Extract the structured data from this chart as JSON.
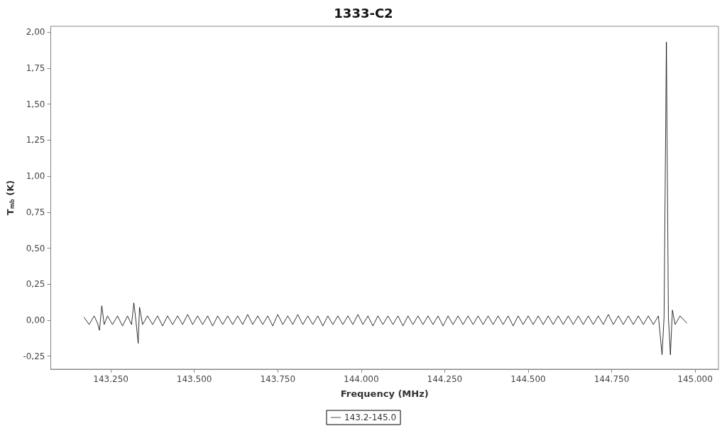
{
  "chart_data": {
    "type": "line",
    "title": "1333-C2",
    "xlabel": "Frequency (MHz)",
    "ylabel": "T$_{mb}$ (K)",
    "xlim": [
      143070,
      145070
    ],
    "xticks": [
      {
        "value": 143250,
        "label": "143.250"
      },
      {
        "value": 143500,
        "label": "143.500"
      },
      {
        "value": 143750,
        "label": "143.750"
      },
      {
        "value": 144000,
        "label": "144.000"
      },
      {
        "value": 144250,
        "label": "144.250"
      },
      {
        "value": 144500,
        "label": "144.500"
      },
      {
        "value": 144750,
        "label": "144.750"
      },
      {
        "value": 145000,
        "label": "145.000"
      }
    ],
    "ylim": [
      -0.34,
      2.04
    ],
    "yticks": [
      {
        "value": -0.25,
        "label": "-0,25"
      },
      {
        "value": 0,
        "label": "0,00"
      },
      {
        "value": 0.25,
        "label": "0,25"
      },
      {
        "value": 0.5,
        "label": "0,50"
      },
      {
        "value": 0.75,
        "label": "0,75"
      },
      {
        "value": 1,
        "label": "1,00"
      },
      {
        "value": 1.25,
        "label": "1,25"
      },
      {
        "value": 1.5,
        "label": "1,50"
      },
      {
        "value": 1.75,
        "label": "1,75"
      },
      {
        "value": 2,
        "label": "2,00"
      }
    ],
    "grid": false,
    "legend": "bottom",
    "marker": "none",
    "line_style": "solid",
    "series": [
      {
        "name": "143.2-145.0",
        "color": "#000000",
        "x": [
          143170,
          143185,
          143200,
          143210,
          143216,
          143223,
          143230,
          143240,
          143255,
          143270,
          143285,
          143300,
          143312,
          143319,
          143326,
          143332,
          143336,
          143345,
          143360,
          143375,
          143390,
          143405,
          143420,
          143435,
          143450,
          143465,
          143480,
          143495,
          143510,
          143525,
          143540,
          143555,
          143570,
          143585,
          143600,
          143615,
          143630,
          143645,
          143660,
          143675,
          143690,
          143705,
          143720,
          143735,
          143750,
          143765,
          143780,
          143795,
          143810,
          143825,
          143840,
          143855,
          143870,
          143885,
          143900,
          143915,
          143930,
          143945,
          143960,
          143975,
          143990,
          144005,
          144020,
          144035,
          144050,
          144065,
          144080,
          144095,
          144110,
          144125,
          144140,
          144155,
          144170,
          144185,
          144200,
          144215,
          144230,
          144245,
          144260,
          144275,
          144290,
          144305,
          144320,
          144335,
          144350,
          144365,
          144380,
          144395,
          144410,
          144425,
          144440,
          144455,
          144470,
          144485,
          144500,
          144515,
          144530,
          144545,
          144560,
          144575,
          144590,
          144605,
          144620,
          144635,
          144650,
          144665,
          144680,
          144695,
          144710,
          144725,
          144740,
          144755,
          144770,
          144785,
          144800,
          144815,
          144830,
          144845,
          144860,
          144875,
          144890,
          144901,
          144907,
          144914,
          144920,
          144926,
          144932,
          144940,
          144955,
          144975
        ],
        "values": [
          0.02,
          -0.03,
          0.03,
          -0.02,
          -0.07,
          0.1,
          -0.03,
          0.03,
          -0.03,
          0.03,
          -0.04,
          0.03,
          -0.03,
          0.12,
          -0.02,
          -0.16,
          0.09,
          -0.03,
          0.03,
          -0.03,
          0.03,
          -0.04,
          0.03,
          -0.03,
          0.03,
          -0.03,
          0.04,
          -0.03,
          0.03,
          -0.03,
          0.03,
          -0.04,
          0.03,
          -0.03,
          0.03,
          -0.03,
          0.03,
          -0.03,
          0.04,
          -0.03,
          0.03,
          -0.03,
          0.03,
          -0.04,
          0.04,
          -0.03,
          0.03,
          -0.03,
          0.04,
          -0.03,
          0.03,
          -0.03,
          0.03,
          -0.04,
          0.03,
          -0.03,
          0.03,
          -0.03,
          0.03,
          -0.03,
          0.04,
          -0.03,
          0.03,
          -0.04,
          0.03,
          -0.03,
          0.03,
          -0.03,
          0.03,
          -0.04,
          0.03,
          -0.03,
          0.03,
          -0.03,
          0.03,
          -0.03,
          0.03,
          -0.04,
          0.03,
          -0.03,
          0.03,
          -0.03,
          0.03,
          -0.03,
          0.03,
          -0.03,
          0.03,
          -0.03,
          0.03,
          -0.03,
          0.03,
          -0.04,
          0.03,
          -0.03,
          0.03,
          -0.03,
          0.03,
          -0.03,
          0.03,
          -0.03,
          0.03,
          -0.03,
          0.03,
          -0.03,
          0.03,
          -0.03,
          0.03,
          -0.03,
          0.03,
          -0.03,
          0.04,
          -0.03,
          0.03,
          -0.03,
          0.03,
          -0.03,
          0.03,
          -0.03,
          0.03,
          -0.03,
          0.03,
          -0.24,
          0.02,
          1.93,
          0.02,
          -0.24,
          0.07,
          -0.03,
          0.03,
          -0.02
        ]
      }
    ]
  }
}
